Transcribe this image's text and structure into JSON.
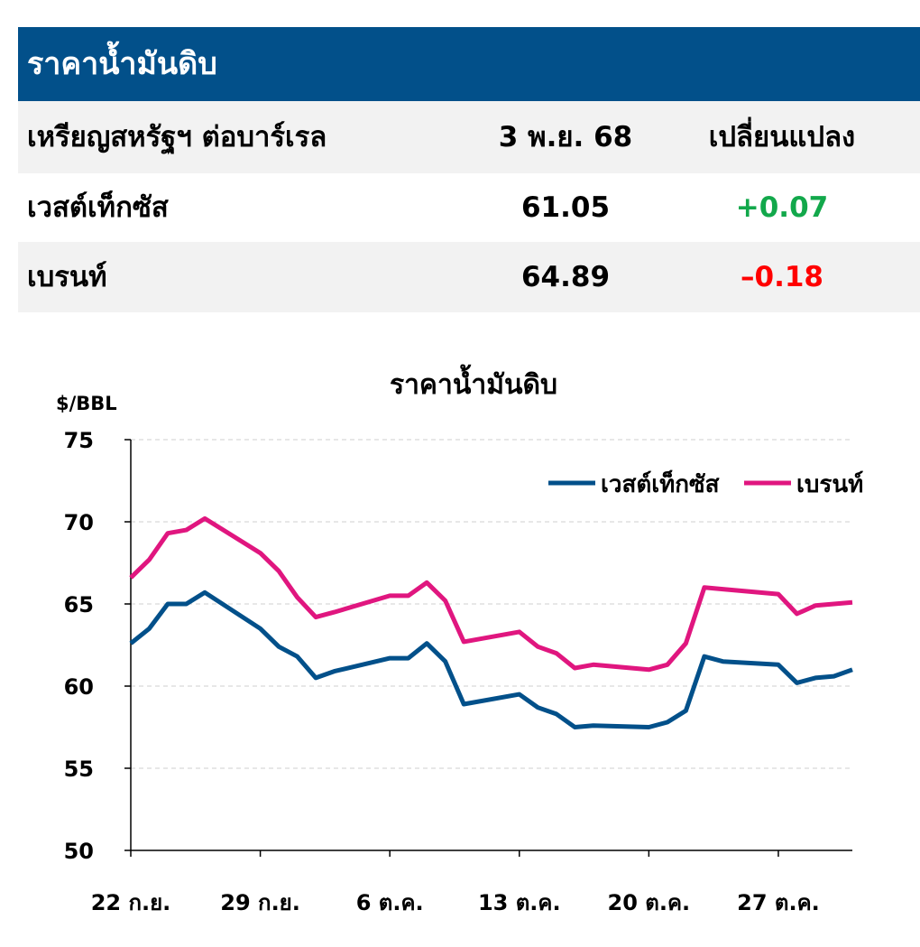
{
  "table": {
    "title": "ราคาน้ำมันดิบ",
    "header": {
      "unit": "เหรียญสหรัฐฯ ต่อบาร์เรล",
      "date": "3 พ.ย. 68",
      "change": "เปลี่ยนแปลง"
    },
    "rows": [
      {
        "name": "เวสต์เท็กซัส",
        "price": "61.05",
        "change": "+0.07",
        "change_color": "#12a84b"
      },
      {
        "name": "เบรนท์",
        "price": "64.89",
        "change": "–0.18",
        "change_color": "#ff0000"
      }
    ],
    "banner_color": "#02508a"
  },
  "chart_data": {
    "type": "line",
    "title": "ราคาน้ำมันดิบ",
    "ylabel": "$/BBL",
    "xlabel": "",
    "ylim": [
      50,
      75
    ],
    "yticks": [
      50,
      55,
      60,
      65,
      70,
      75
    ],
    "xlim": [
      "2025-09-22",
      "2025-10-31"
    ],
    "xticks": [
      {
        "date": "2025-09-22",
        "label": "22 ก.ย."
      },
      {
        "date": "2025-09-29",
        "label": "29 ก.ย."
      },
      {
        "date": "2025-10-06",
        "label": "6 ต.ค."
      },
      {
        "date": "2025-10-13",
        "label": "13 ต.ค."
      },
      {
        "date": "2025-10-20",
        "label": "20 ต.ค."
      },
      {
        "date": "2025-10-27",
        "label": "27 ต.ค."
      }
    ],
    "grid": "horizontal dashed",
    "legend": "top-right",
    "x": [
      "2025-09-22",
      "2025-09-23",
      "2025-09-24",
      "2025-09-25",
      "2025-09-26",
      "2025-09-29",
      "2025-09-30",
      "2025-10-01",
      "2025-10-02",
      "2025-10-03",
      "2025-10-06",
      "2025-10-07",
      "2025-10-08",
      "2025-10-09",
      "2025-10-10",
      "2025-10-13",
      "2025-10-14",
      "2025-10-15",
      "2025-10-16",
      "2025-10-17",
      "2025-10-20",
      "2025-10-21",
      "2025-10-22",
      "2025-10-23",
      "2025-10-24",
      "2025-10-27",
      "2025-10-28",
      "2025-10-29",
      "2025-10-30",
      "2025-10-31"
    ],
    "series": [
      {
        "name": "เวสต์เท็กซัส",
        "color": "#02508a",
        "values": [
          62.6,
          63.5,
          65.0,
          65.0,
          65.7,
          63.5,
          62.4,
          61.8,
          60.5,
          60.9,
          61.7,
          61.7,
          62.6,
          61.5,
          58.9,
          59.5,
          58.7,
          58.3,
          57.5,
          57.6,
          57.5,
          57.8,
          58.5,
          61.8,
          61.5,
          61.3,
          60.2,
          60.5,
          60.6,
          61.0
        ]
      },
      {
        "name": "เบรนท์",
        "color": "#e0167f",
        "values": [
          66.6,
          67.7,
          69.3,
          69.5,
          70.2,
          68.1,
          67.0,
          65.4,
          64.2,
          64.5,
          65.5,
          65.5,
          66.3,
          65.2,
          62.7,
          63.3,
          62.4,
          62.0,
          61.1,
          61.3,
          61.0,
          61.3,
          62.6,
          66.0,
          65.9,
          65.6,
          64.4,
          64.9,
          65.0,
          65.1
        ]
      }
    ]
  }
}
